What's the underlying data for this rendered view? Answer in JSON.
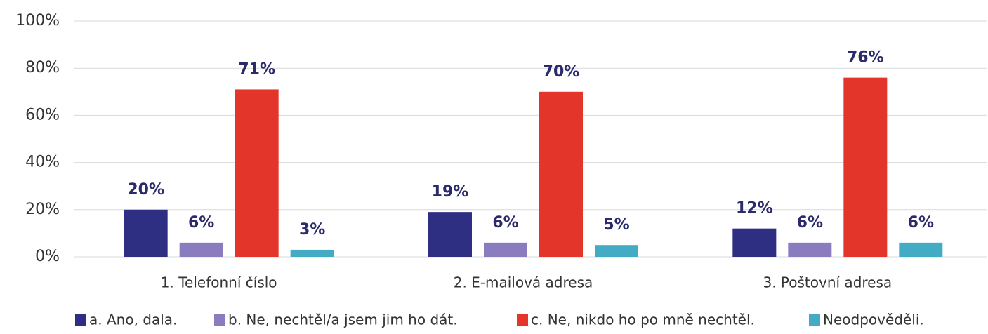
{
  "chart_data": {
    "type": "bar",
    "categories": [
      "1. Telefonní číslo",
      "2. E-mailová adresa",
      "3. Poštovní adresa"
    ],
    "series": [
      {
        "name": "a. Ano, dala.",
        "color": "#2e2e82",
        "values": [
          20,
          19,
          12
        ],
        "value_labels": [
          "20%",
          "19%",
          "12%"
        ]
      },
      {
        "name": "b. Ne, nechtěl/a jsem jim ho dát.",
        "color": "#8b7bbf",
        "values": [
          6,
          6,
          6
        ],
        "value_labels": [
          "6%",
          "6%",
          "6%"
        ]
      },
      {
        "name": "c. Ne, nikdo ho po mně nechtěl.",
        "color": "#e4352b",
        "values": [
          71,
          70,
          76
        ],
        "value_labels": [
          "71%",
          "70%",
          "76%"
        ]
      },
      {
        "name": "Neodpověděli.",
        "color": "#44abc4",
        "values": [
          3,
          5,
          6
        ],
        "value_labels": [
          "3%",
          "5%",
          "6%"
        ]
      }
    ],
    "ylim": [
      0,
      100
    ],
    "yticks": [
      {
        "value": 0,
        "label": "0%"
      },
      {
        "value": 20,
        "label": "20%"
      },
      {
        "value": 40,
        "label": "40%"
      },
      {
        "value": 60,
        "label": "60%"
      },
      {
        "value": 80,
        "label": "80%"
      },
      {
        "value": 100,
        "label": "100%"
      }
    ],
    "grid": true,
    "legend": "bottom"
  }
}
